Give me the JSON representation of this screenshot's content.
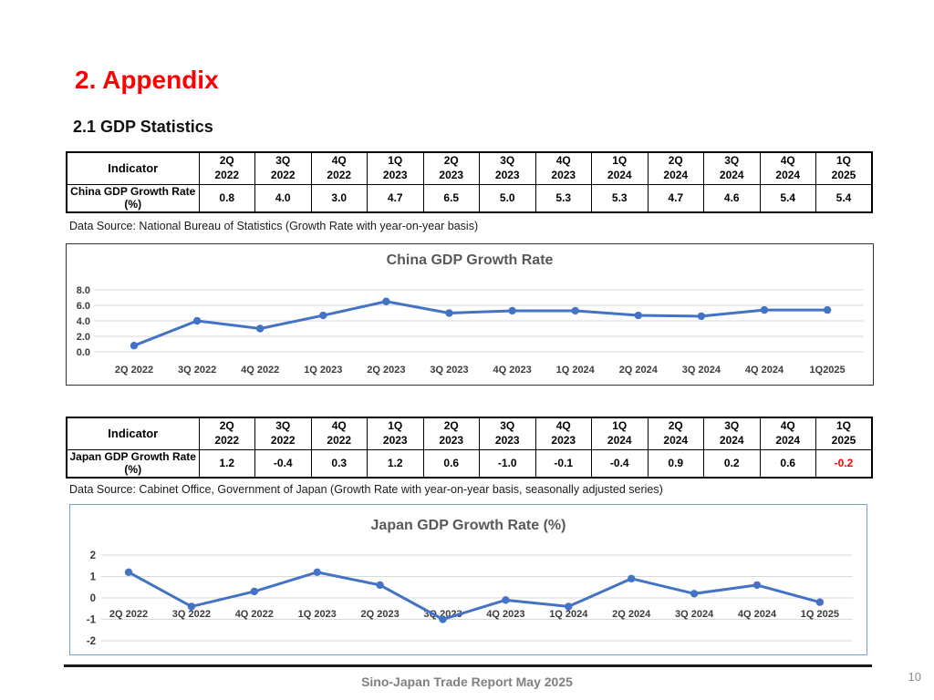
{
  "page": {
    "title": "2. Appendix",
    "subtitle": "2.1 GDP Statistics"
  },
  "colors": {
    "title_red": "#FF0000",
    "highlight_red": "#FF0000",
    "accent_line": "#4472C4",
    "chart_title_gray": "#595959",
    "gridline_gray": "#D9D9D9",
    "axis_label_gray": "#3B3B3B",
    "japan_chart_border": "#74A1D4",
    "footer_gray": "#808080"
  },
  "tables": [
    {
      "indicator_header": "Indicator",
      "row_label": "China GDP Growth Rate (%)",
      "columns": [
        "2Q 2022",
        "3Q 2022",
        "4Q 2022",
        "1Q 2023",
        "2Q 2023",
        "3Q 2023",
        "4Q 2023",
        "1Q 2024",
        "2Q 2024",
        "3Q 2024",
        "4Q 2024",
        "1Q 2025"
      ],
      "values": [
        "0.8",
        "4.0",
        "3.0",
        "4.7",
        "6.5",
        "5.0",
        "5.3",
        "5.3",
        "4.7",
        "4.6",
        "5.4",
        "5.4"
      ],
      "red_value_indices": [],
      "source_note": "Data Source: National Bureau of Statistics (Growth Rate with year-on-year basis)"
    },
    {
      "indicator_header": "Indicator",
      "row_label": "Japan GDP Growth Rate (%)",
      "columns": [
        "2Q 2022",
        "3Q 2022",
        "4Q 2022",
        "1Q 2023",
        "2Q 2023",
        "3Q 2023",
        "4Q 2023",
        "1Q 2024",
        "2Q 2024",
        "3Q 2024",
        "4Q 2024",
        "1Q 2025"
      ],
      "values": [
        "1.2",
        "-0.4",
        "0.3",
        "1.2",
        "0.6",
        "-1.0",
        "-0.1",
        "-0.4",
        "0.9",
        "0.2",
        "0.6",
        "-0.2"
      ],
      "red_value_indices": [
        11
      ],
      "source_note": "Data Source: Cabinet Office, Government of Japan (Growth Rate with year-on-year basis, seasonally adjusted series)"
    }
  ],
  "chart_data": [
    {
      "type": "line",
      "title": "China GDP Growth Rate",
      "categories": [
        "2Q 2022",
        "3Q 2022",
        "4Q 2022",
        "1Q 2023",
        "2Q 2023",
        "3Q 2023",
        "4Q 2023",
        "1Q 2024",
        "2Q 2024",
        "3Q 2024",
        "4Q 2024",
        "1Q2025"
      ],
      "values": [
        0.8,
        4.0,
        3.0,
        4.7,
        6.5,
        5.0,
        5.3,
        5.3,
        4.7,
        4.6,
        5.4,
        5.4
      ],
      "xlabel": "",
      "ylabel": "",
      "ylim": [
        0,
        8
      ],
      "yticks": [
        0,
        2,
        4,
        6,
        8
      ],
      "ytick_labels": [
        "0.0",
        "2.0",
        "4.0",
        "6.0",
        "8.0"
      ],
      "grid": true,
      "legend": false,
      "line_color": "#4472C4",
      "marker": "circle"
    },
    {
      "type": "line",
      "title": "Japan GDP Growth Rate (%)",
      "categories": [
        "2Q 2022",
        "3Q 2022",
        "4Q 2022",
        "1Q 2023",
        "2Q 2023",
        "3Q 2023",
        "4Q 2023",
        "1Q 2024",
        "2Q 2024",
        "3Q 2024",
        "4Q 2024",
        "1Q 2025"
      ],
      "values": [
        1.2,
        -0.4,
        0.3,
        1.2,
        0.6,
        -1.0,
        -0.1,
        -0.4,
        0.9,
        0.2,
        0.6,
        -0.2
      ],
      "xlabel": "",
      "ylabel": "",
      "ylim": [
        -2,
        2
      ],
      "yticks": [
        -2,
        -1,
        0,
        1,
        2
      ],
      "ytick_labels": [
        "-2",
        "-1",
        "0",
        "1",
        "2"
      ],
      "grid": true,
      "legend": false,
      "line_color": "#4472C4",
      "marker": "circle"
    }
  ],
  "footer": {
    "text": "Sino-Japan Trade Report May 2025",
    "page_number": "10"
  }
}
